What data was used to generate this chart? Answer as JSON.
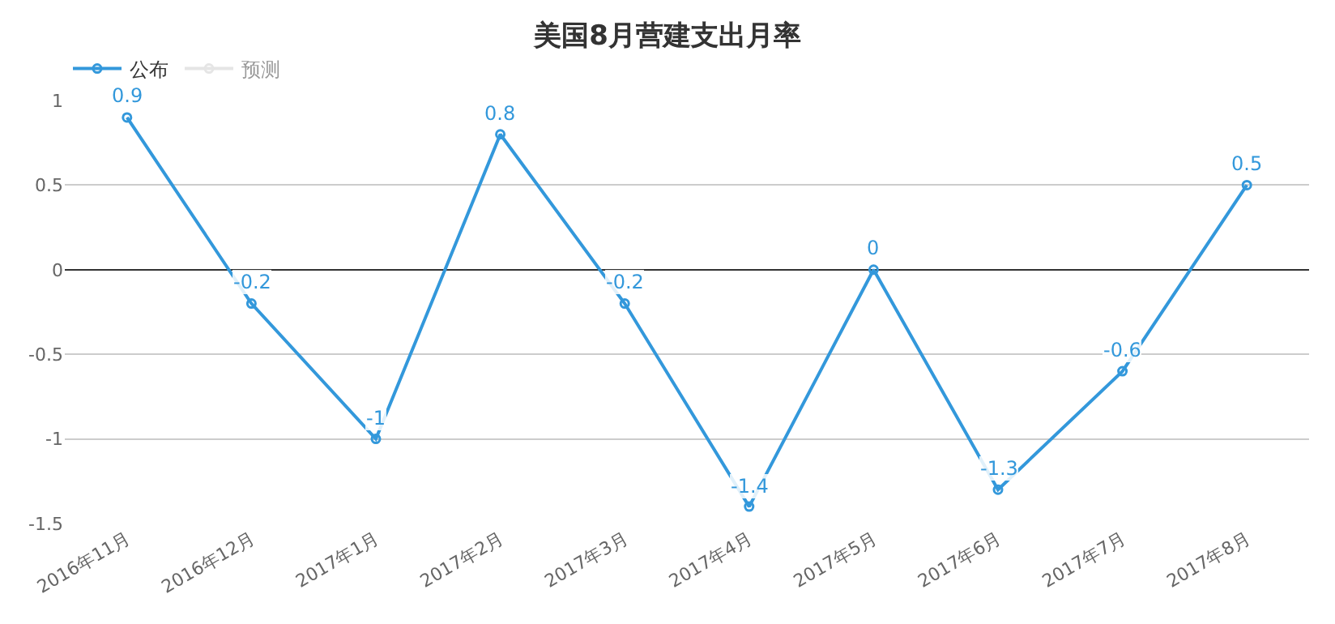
{
  "chart_data": {
    "type": "line",
    "title": "美国8月营建支出月率",
    "categories": [
      "2016年11月",
      "2016年12月",
      "2017年1月",
      "2017年2月",
      "2017年3月",
      "2017年4月",
      "2017年5月",
      "2017年6月",
      "2017年7月",
      "2017年8月"
    ],
    "series": [
      {
        "name": "公布",
        "color": "#3398db",
        "values": [
          0.9,
          -0.2,
          -1,
          0.8,
          -0.2,
          -1.4,
          0,
          -1.3,
          -0.6,
          0.5
        ]
      },
      {
        "name": "预测",
        "color": "#cccccc",
        "values": [
          null,
          null,
          null,
          null,
          null,
          null,
          null,
          null,
          null,
          null
        ]
      }
    ],
    "ylim": [
      -1.5,
      1
    ],
    "yticks": [
      -1.5,
      -1,
      -0.5,
      0,
      0.5,
      1
    ],
    "grid": "y",
    "legend": "top left",
    "marker": "circle",
    "line_style": "solid",
    "data_labels": true
  }
}
